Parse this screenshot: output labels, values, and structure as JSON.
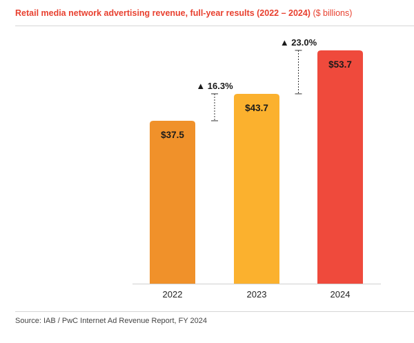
{
  "title": "Retail media network advertising revenue, full-year results (2022 – 2024)",
  "subtitle": "($ billions)",
  "source": "Source: IAB / PwC Internet Ad Revenue Report, FY 2024",
  "chart_data": {
    "type": "bar",
    "categories": [
      "2022",
      "2023",
      "2024"
    ],
    "values": [
      37.5,
      43.7,
      53.7
    ],
    "value_labels": [
      "$37.5",
      "$43.7",
      "$53.7"
    ],
    "colors": [
      "#f0912a",
      "#fbb12e",
      "#ef4a3c"
    ],
    "growth_annotations": [
      {
        "from": "2022",
        "to": "2023",
        "label": "▲ 16.3%"
      },
      {
        "from": "2023",
        "to": "2024",
        "label": "▲ 23.0%"
      }
    ],
    "ylim": [
      0,
      53.7
    ],
    "xlabel": "",
    "ylabel": "",
    "grid": false,
    "legend": "none"
  }
}
